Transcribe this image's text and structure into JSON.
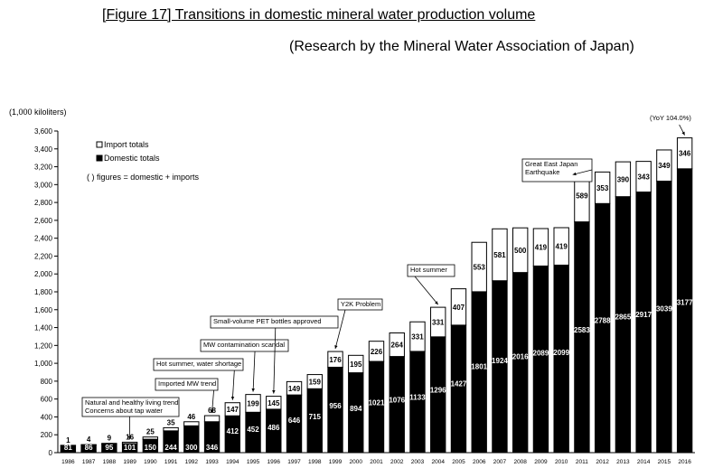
{
  "title": "[Figure 17] Transitions in domestic mineral water production volume",
  "subtitle": "(Research by the Mineral Water Association of Japan)",
  "chart_data": {
    "type": "bar",
    "stacked": true,
    "ylabel": "(1,000 kiloliters)",
    "ylim": [
      0,
      3600
    ],
    "ytick_step": 200,
    "categories": [
      "1986",
      "1987",
      "1988",
      "1989",
      "1990",
      "1991",
      "1992",
      "1993",
      "1994",
      "1995",
      "1996",
      "1997",
      "1998",
      "1999",
      "2000",
      "2001",
      "2002",
      "2003",
      "2004",
      "2005",
      "2006",
      "2007",
      "2008",
      "2009",
      "2010",
      "2011",
      "2012",
      "2013",
      "2014",
      "2015",
      "2016"
    ],
    "series": [
      {
        "name": "Domestic totals",
        "color": "#000000",
        "values": [
          81,
          86,
          95,
          101,
          150,
          244,
          300,
          346,
          412,
          452,
          486,
          646,
          715,
          956,
          894,
          1021,
          1076,
          1133,
          1296,
          1427,
          1801,
          1924,
          2016,
          2089,
          2099,
          2583,
          2788,
          2865,
          2917,
          3039,
          3177
        ]
      },
      {
        "name": "Import totals",
        "color": "#ffffff",
        "values": [
          1,
          4,
          9,
          16,
          25,
          35,
          46,
          68,
          147,
          199,
          145,
          149,
          159,
          176,
          195,
          226,
          264,
          331,
          331,
          407,
          553,
          581,
          500,
          419,
          419,
          589,
          353,
          390,
          343,
          349,
          346
        ]
      }
    ],
    "legend": {
      "position": "top-left",
      "items": [
        "Import totals",
        "Domestic totals"
      ],
      "note": "(          ) figures = domestic + imports"
    },
    "annotations": [
      {
        "year": "1989",
        "lines": [
          "Natural and healthy living trend",
          "Concerns about tap water"
        ]
      },
      {
        "year": "1993",
        "lines": [
          "Imported MW trend"
        ]
      },
      {
        "year": "1994",
        "lines": [
          "Hot summer, water shortage"
        ]
      },
      {
        "year": "1995",
        "lines": [
          "MW contamination scandal"
        ]
      },
      {
        "year": "1996",
        "lines": [
          "Small-volume PET bottles approved"
        ]
      },
      {
        "year": "1999",
        "lines": [
          "Y2K Problem"
        ]
      },
      {
        "year": "2004",
        "lines": [
          "Hot summer"
        ]
      },
      {
        "year": "2011",
        "lines": [
          "Great East Japan",
          "Earthquake"
        ]
      },
      {
        "year": "2016",
        "lines": [
          "(YoY 104.0%)"
        ]
      }
    ]
  }
}
